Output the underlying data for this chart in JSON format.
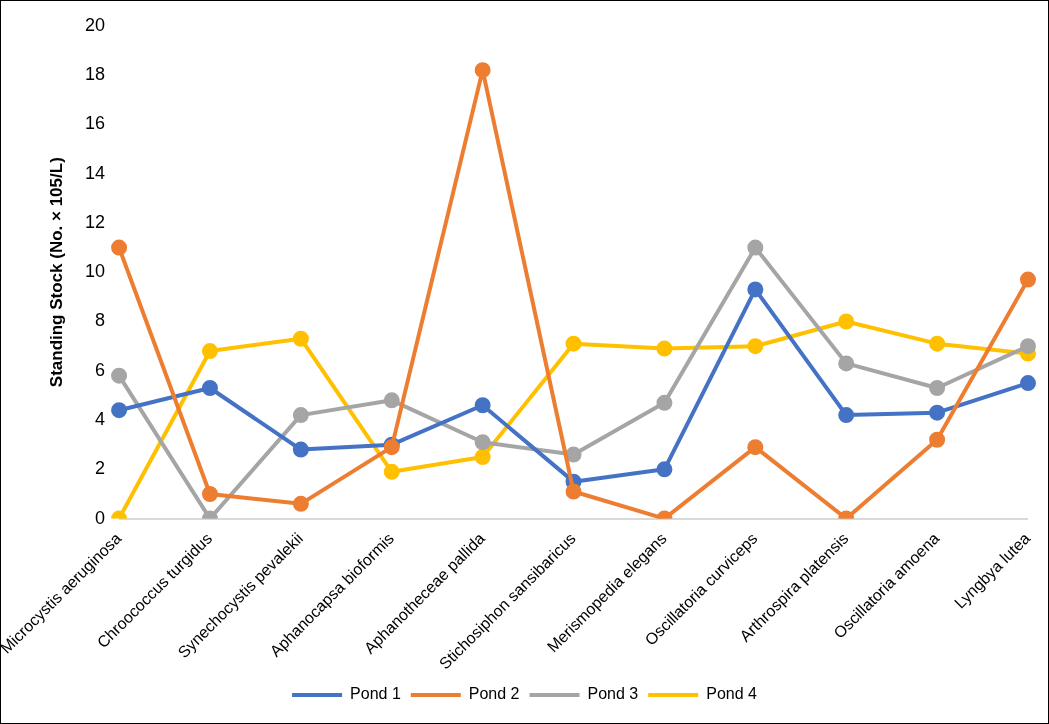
{
  "chart_data": {
    "type": "line",
    "ylabel": "Standing Stock (No. × 105/L)",
    "categories": [
      "Microcystis aeruginosa",
      "Chroococcus turgidus",
      "Synechocystis pevalekii",
      "Aphanocapsa bioformis",
      "Aphanotheceae pallida",
      "Stichosiphon sansibaricus",
      "Merismopedia elegans",
      "Oscillatoria curviceps",
      "Arthrospira platensis",
      "Oscillatoria amoena",
      "Lyngbya lutea"
    ],
    "series": [
      {
        "name": "Pond 1",
        "color": "#4472c4",
        "values": [
          4.4,
          5.3,
          2.8,
          3.0,
          4.6,
          1.5,
          2.0,
          9.3,
          4.2,
          4.3,
          5.5
        ]
      },
      {
        "name": "Pond 2",
        "color": "#ed7d31",
        "values": [
          11.0,
          1.0,
          0.6,
          2.9,
          18.2,
          1.1,
          0,
          2.9,
          0,
          3.2,
          9.7
        ]
      },
      {
        "name": "Pond 3",
        "color": "#a5a5a5",
        "values": [
          5.8,
          0,
          4.2,
          4.8,
          3.1,
          2.6,
          4.7,
          11.0,
          6.3,
          5.3,
          7.0
        ]
      },
      {
        "name": "Pond 4",
        "color": "#ffc000",
        "values": [
          0,
          6.8,
          7.3,
          1.9,
          2.5,
          7.1,
          6.9,
          7.0,
          8.0,
          7.1,
          6.7
        ]
      }
    ],
    "ylim": [
      0,
      20
    ],
    "yticks": [
      0,
      2,
      4,
      6,
      8,
      10,
      12,
      14,
      16,
      18,
      20
    ],
    "grid": false,
    "legend": "bottom",
    "marker": "circle",
    "line_style": "solid"
  }
}
